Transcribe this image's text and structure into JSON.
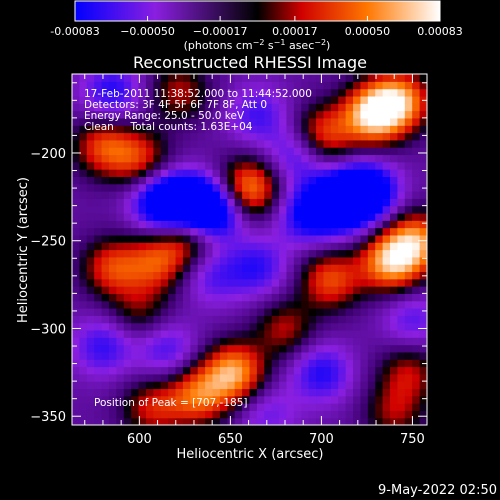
{
  "chart_data": {
    "type": "heatmap",
    "title": "Reconstructed RHESSI Image",
    "xlabel": "Heliocentric X (arcsec)",
    "ylabel": "Heliocentric Y (arcsec)",
    "xlim": [
      563,
      758
    ],
    "ylim": [
      -355,
      -155
    ],
    "x_ticks": [
      600,
      650,
      700,
      750
    ],
    "y_ticks": [
      -200,
      -250,
      -300,
      -350
    ],
    "x_tick_labels": [
      "600",
      "650",
      "700",
      "750"
    ],
    "y_tick_labels": [
      "−200",
      "−250",
      "−300",
      "−350"
    ],
    "colorbar": {
      "range": [
        -0.00083,
        0.00083
      ],
      "tick_values": [
        -0.00083,
        -0.0005,
        -0.00017,
        0.00017,
        0.0005,
        0.00083
      ],
      "tick_labels": [
        "-0.00083",
        "−0.00050",
        "−0.00017",
        "0.00017",
        "0.00050",
        "0.00083"
      ],
      "unit_prefix": "(photons cm",
      "unit_exp1": "−2",
      "unit_mid1": " s",
      "unit_exp2": "−1",
      "unit_mid2": " asec",
      "unit_exp3": "−2",
      "unit_suffix": ")",
      "colormap": [
        "#0000ff",
        "#8a1fe0",
        "#000000",
        "#d00000",
        "#ff7700",
        "#ffffff"
      ]
    },
    "annotations": [
      "17-Feb-2011 11:38:52.000 to 11:44:52.000",
      "Detectors: 3F 4F 5F 6F 7F 8F, Att 0",
      "Energy Range: 25.0 - 50.0 keV",
      "Clean     Total counts: 1.63E+04"
    ],
    "peak_label": "Position of Peak = [707,-185]",
    "peak": [
      707,
      -185
    ],
    "sources": [
      {
        "x": 728,
        "y": -178,
        "amp": 1.0
      },
      {
        "x": 743,
        "y": -170,
        "amp": 0.85
      },
      {
        "x": 700,
        "y": -190,
        "amp": 0.7
      },
      {
        "x": 660,
        "y": -220,
        "amp": 0.85
      },
      {
        "x": 627,
        "y": -245,
        "amp": 0.7
      },
      {
        "x": 610,
        "y": -262,
        "amp": 0.6
      },
      {
        "x": 585,
        "y": -265,
        "amp": 0.6
      },
      {
        "x": 705,
        "y": -272,
        "amp": 0.65
      },
      {
        "x": 738,
        "y": -262,
        "amp": 0.9
      },
      {
        "x": 752,
        "y": -250,
        "amp": 0.8
      },
      {
        "x": 680,
        "y": -300,
        "amp": 0.45
      },
      {
        "x": 652,
        "y": -325,
        "amp": 0.9
      },
      {
        "x": 632,
        "y": -338,
        "amp": 0.7
      },
      {
        "x": 607,
        "y": -345,
        "amp": 0.5
      },
      {
        "x": 600,
        "y": -203,
        "amp": 0.55
      },
      {
        "x": 580,
        "y": -196,
        "amp": 0.6
      },
      {
        "x": 622,
        "y": -165,
        "amp": 0.45
      },
      {
        "x": 600,
        "y": -290,
        "amp": 0.35
      },
      {
        "x": 748,
        "y": -325,
        "amp": 0.45
      },
      {
        "x": 740,
        "y": -348,
        "amp": 0.4
      },
      {
        "x": 640,
        "y": -233,
        "amp": -0.95
      },
      {
        "x": 625,
        "y": -230,
        "amp": -0.85
      },
      {
        "x": 612,
        "y": -228,
        "amp": -0.7
      },
      {
        "x": 688,
        "y": -200,
        "amp": -0.5
      },
      {
        "x": 725,
        "y": -222,
        "amp": -0.9
      },
      {
        "x": 710,
        "y": -228,
        "amp": -0.85
      },
      {
        "x": 692,
        "y": -235,
        "amp": -0.55
      },
      {
        "x": 665,
        "y": -265,
        "amp": -0.45
      },
      {
        "x": 700,
        "y": -325,
        "amp": -0.5
      },
      {
        "x": 580,
        "y": -310,
        "amp": -0.45
      },
      {
        "x": 615,
        "y": -312,
        "amp": -0.4
      },
      {
        "x": 750,
        "y": -295,
        "amp": -0.35
      },
      {
        "x": 665,
        "y": -178,
        "amp": -0.4
      },
      {
        "x": 585,
        "y": -165,
        "amp": -0.5
      },
      {
        "x": 640,
        "y": -270,
        "amp": -0.35
      },
      {
        "x": 670,
        "y": -348,
        "amp": -0.3
      }
    ]
  },
  "footer": {
    "date_stamp": "9-May-2022 02:50"
  }
}
